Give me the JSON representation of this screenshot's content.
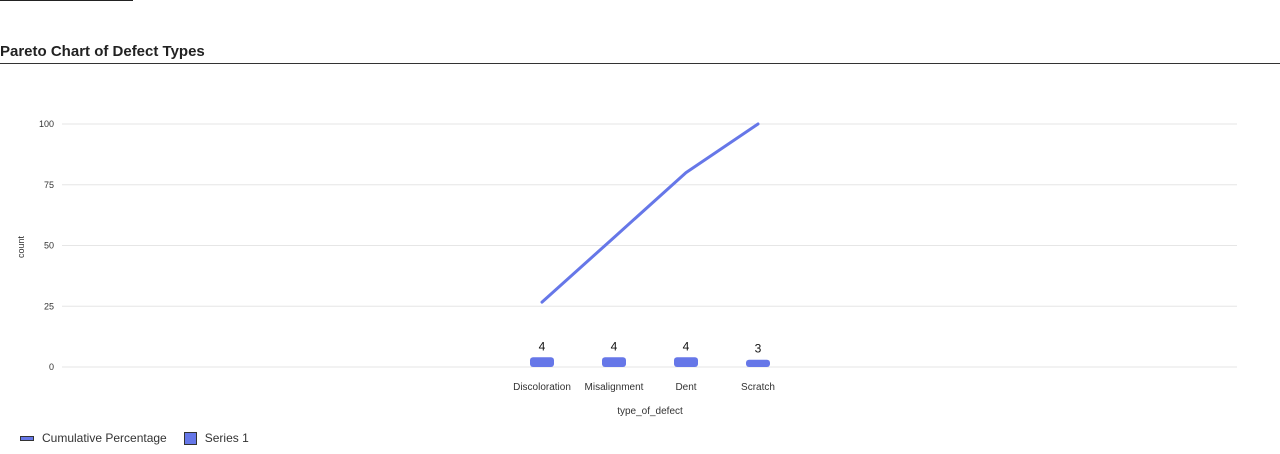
{
  "chart_data": {
    "type": "bar",
    "title": "Pareto Chart of Defect Types",
    "xlabel": "type_of_defect",
    "ylabel": "count",
    "categories": [
      "Discoloration",
      "Misalignment",
      "Dent",
      "Scratch"
    ],
    "series": [
      {
        "name": "Series 1",
        "type": "bar",
        "values": [
          4,
          4,
          4,
          3
        ]
      },
      {
        "name": "Cumulative Percentage",
        "type": "line",
        "values": [
          26.7,
          53.3,
          80.0,
          100.0
        ]
      }
    ],
    "data_labels": [
      "4",
      "4",
      "4",
      "3"
    ],
    "ylim": [
      0,
      100
    ],
    "yticks": [
      0,
      25,
      50,
      75,
      100
    ],
    "grid": true,
    "legend_position": "bottom-left",
    "colors": {
      "accent": "#6677e8",
      "grid": "#e6e6e6",
      "axis_text": "#333333"
    }
  }
}
